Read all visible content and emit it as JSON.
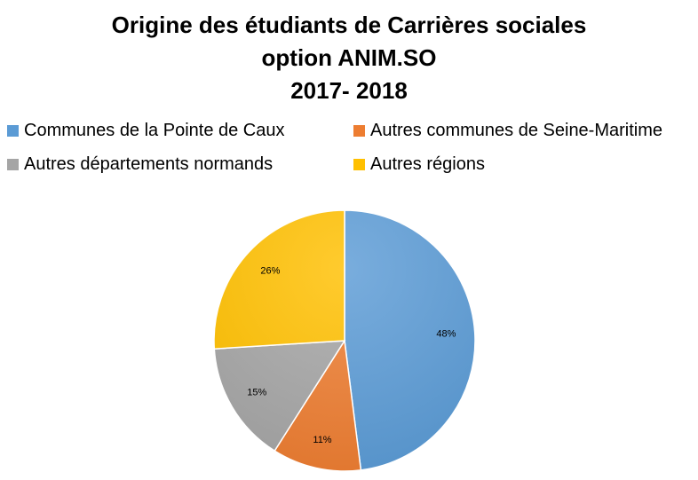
{
  "chart_data": {
    "type": "pie",
    "title_lines": [
      "Origine des étudiants de Carrières sociales",
      "option ANIM.SO",
      "2017- 2018"
    ],
    "series": [
      {
        "name": "Communes de la Pointe de Caux",
        "value": 48,
        "label": "48%",
        "color": "#5B9BD5"
      },
      {
        "name": "Autres communes de Seine-Maritime",
        "value": 11,
        "label": "11%",
        "color": "#ED7D31"
      },
      {
        "name": "Autres départements normands",
        "value": 15,
        "label": "15%",
        "color": "#A5A5A5"
      },
      {
        "name": "Autres régions",
        "value": 26,
        "label": "26%",
        "color": "#FFC000"
      }
    ],
    "legend_position": "top",
    "start_angle": "12 o'clock",
    "direction": "clockwise"
  }
}
